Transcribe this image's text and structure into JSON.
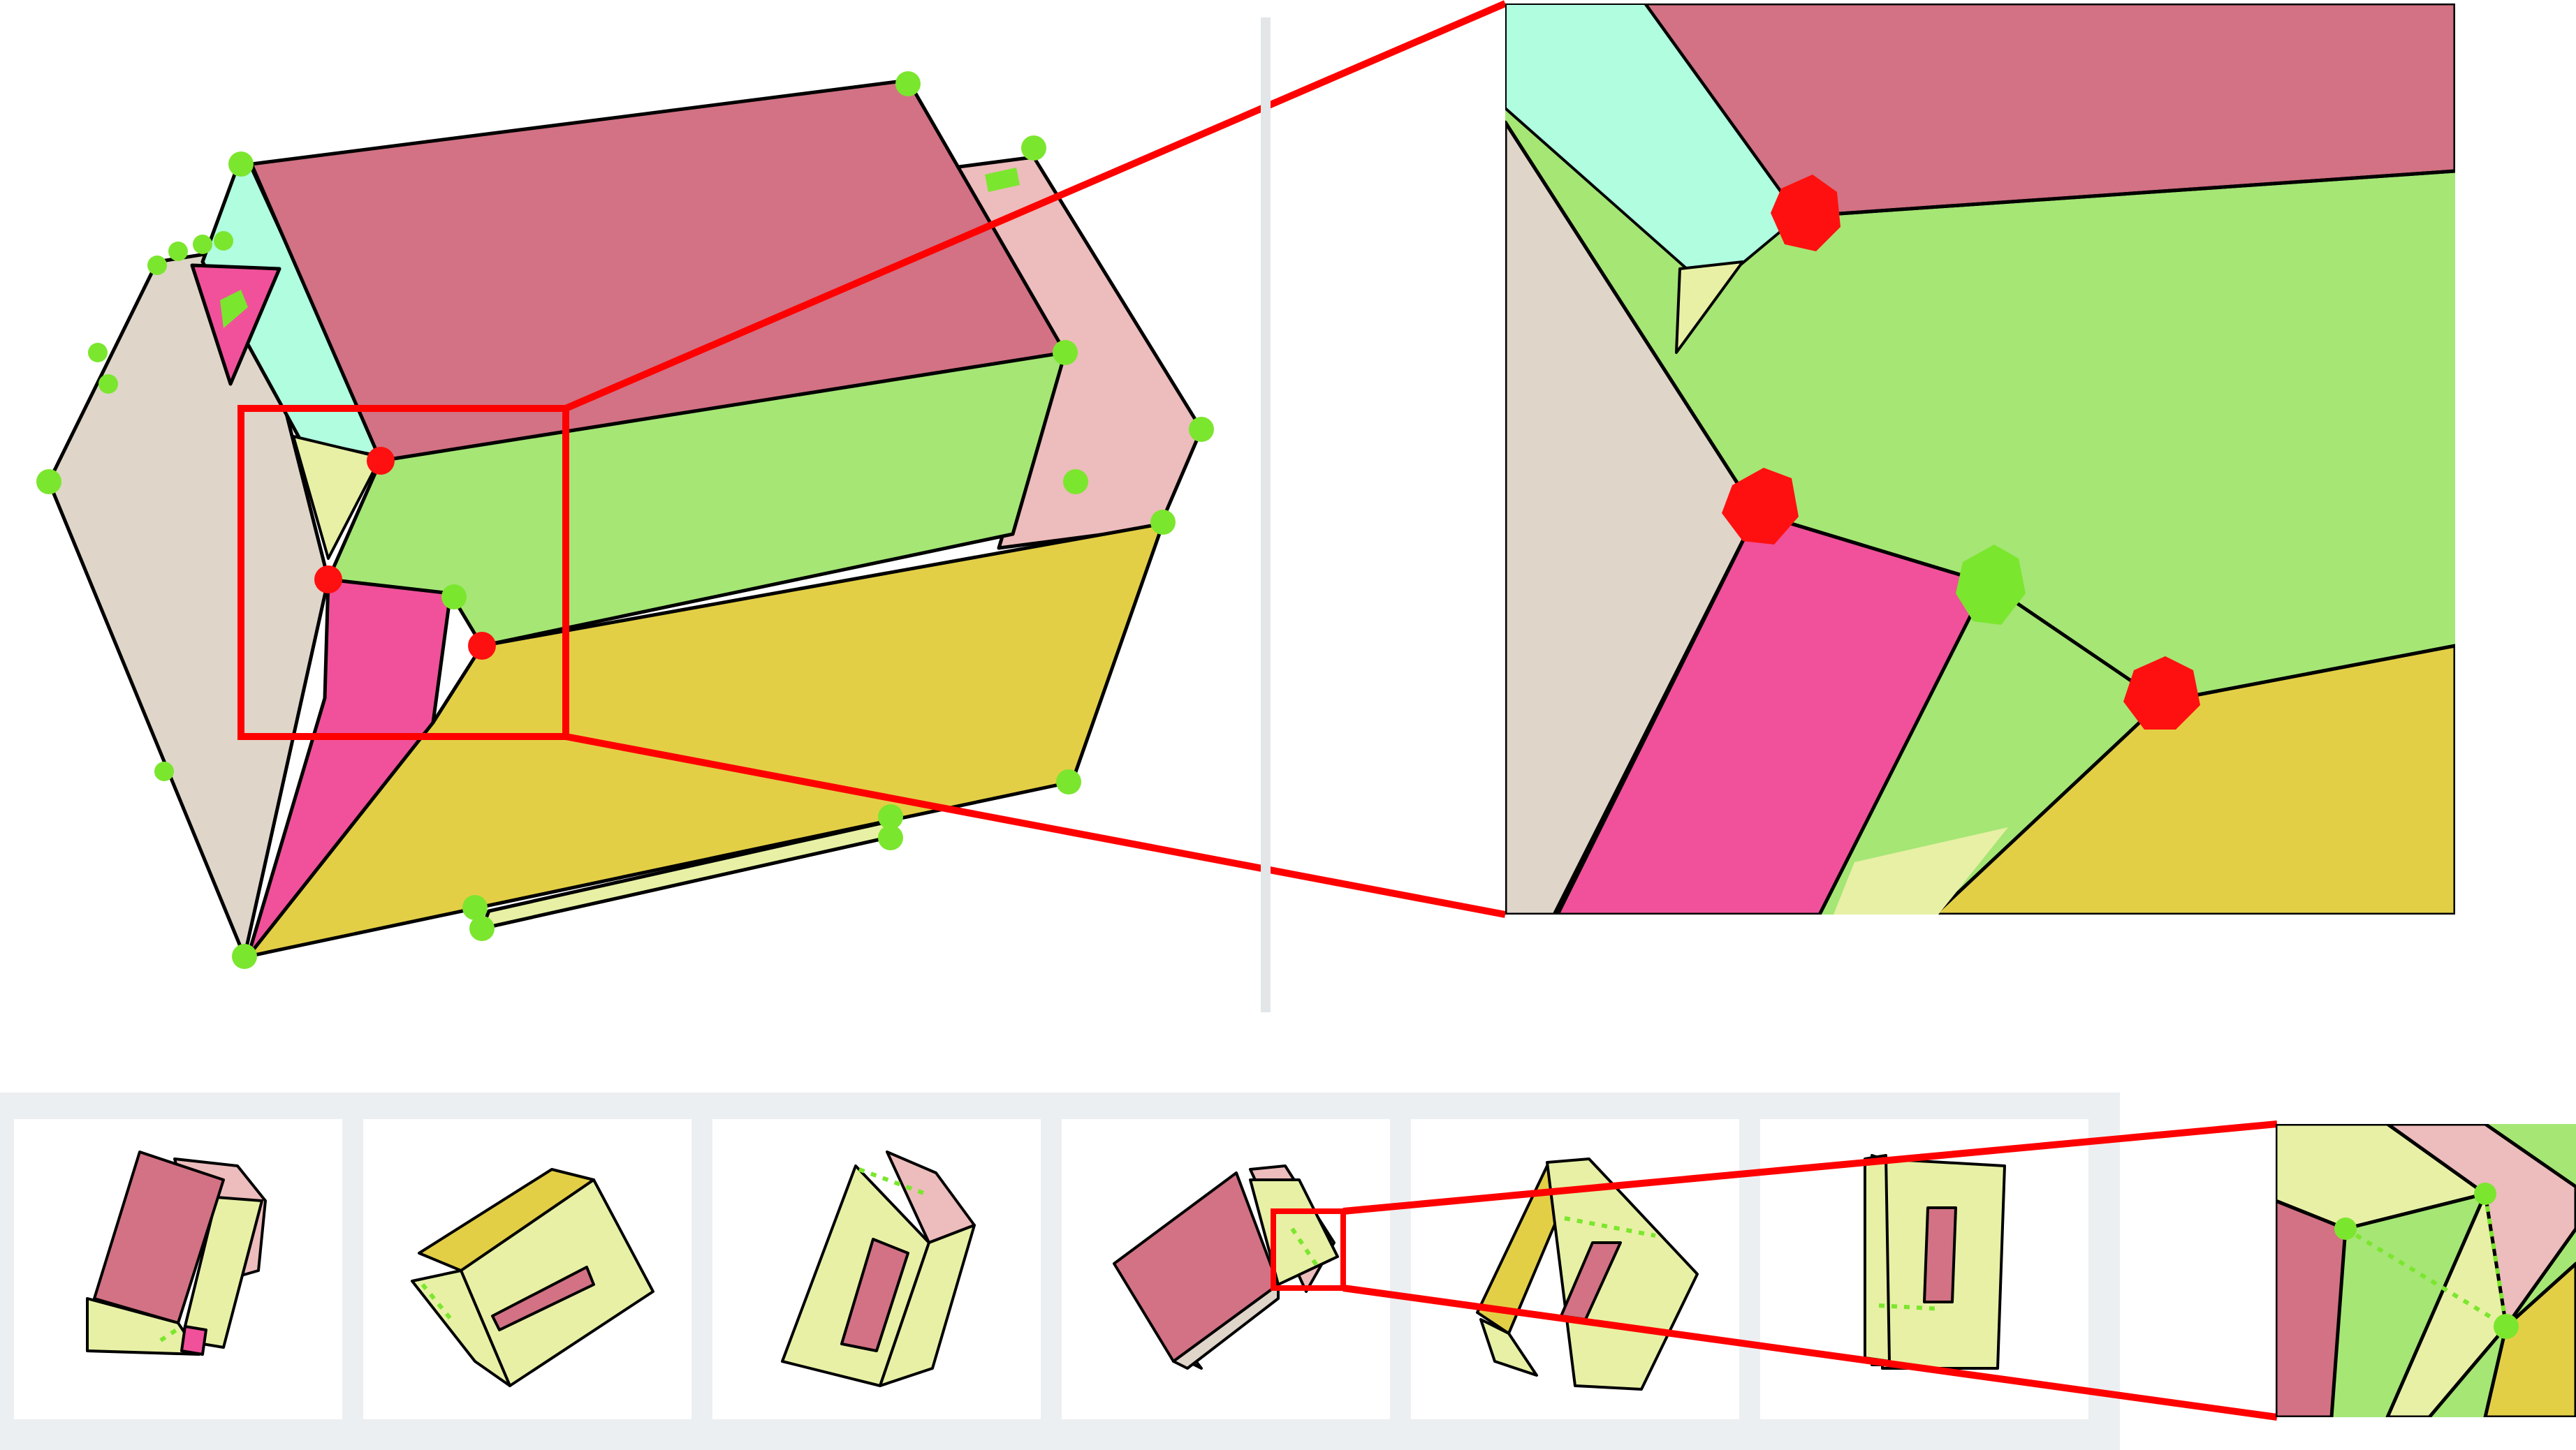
{
  "colors": {
    "background": "#ffffff",
    "panel_strip": "#eceff1",
    "divider": "#e3e6e8",
    "highlight": "#ff0000",
    "vertex_good": "#7be62e",
    "vertex_bad": "#ff1010",
    "top_face": "#d27284",
    "front_face": "#a5e675",
    "lower_face": "#e3cf46",
    "left_face": "#dfd5c9",
    "pink_face": "#f0519a",
    "cyan_face": "#b0fde0",
    "light_pink_face": "#edbcbc",
    "pale_yellow_face": "#e8f0a5",
    "edge": "#000000"
  },
  "views": {
    "main": {
      "good_vertices": [
        {
          "id": "g1"
        },
        {
          "id": "g2"
        },
        {
          "id": "g3"
        },
        {
          "id": "g4"
        },
        {
          "id": "g5"
        },
        {
          "id": "g6"
        },
        {
          "id": "g7"
        },
        {
          "id": "g8"
        },
        {
          "id": "g9"
        },
        {
          "id": "g10"
        },
        {
          "id": "g11"
        },
        {
          "id": "g12"
        },
        {
          "id": "g13"
        },
        {
          "id": "g14"
        },
        {
          "id": "g15"
        }
      ],
      "bad_vertices": [
        {
          "id": "r1"
        },
        {
          "id": "r2"
        },
        {
          "id": "r3"
        }
      ]
    },
    "zoom": {
      "good_vertices": [
        {
          "id": "zg1"
        }
      ],
      "bad_vertices": [
        {
          "id": "zr1"
        },
        {
          "id": "zr2"
        },
        {
          "id": "zr3"
        }
      ]
    }
  },
  "thumbnails": [
    {
      "id": "view-1"
    },
    {
      "id": "view-2"
    },
    {
      "id": "view-3"
    },
    {
      "id": "view-4"
    },
    {
      "id": "view-5"
    },
    {
      "id": "view-6"
    }
  ]
}
